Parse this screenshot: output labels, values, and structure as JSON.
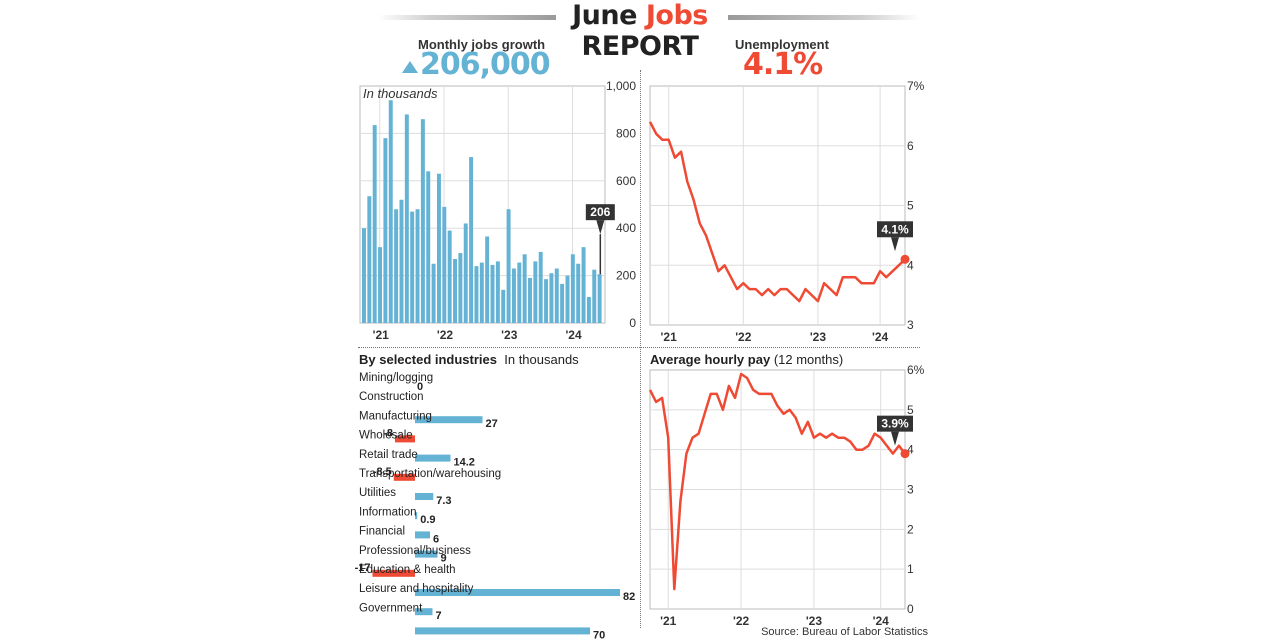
{
  "header": {
    "title_top_a": "June ",
    "title_top_b": "Jobs",
    "title_bottom": "REPORT",
    "jobs_label": "Monthly jobs growth",
    "jobs_value": "206,000",
    "unemployment_label": "Unemployment",
    "unemployment_value": "4.1%"
  },
  "colors": {
    "blue": "#64b2d4",
    "red": "#ef4a33",
    "dark": "#333333"
  },
  "icons": {
    "jobs_trend": "up-arrow-icon"
  },
  "industries_title": {
    "bold": "By selected industries",
    "light": "In thousands"
  },
  "pay_title": {
    "bold": "Average hourly pay",
    "light": "(12 months)"
  },
  "source": "Source: Bureau of Labor Statistics",
  "chart_data": [
    {
      "id": "jobs",
      "type": "bar",
      "subtitle": "In thousands",
      "ylim": [
        0,
        1000
      ],
      "yticks": [
        0,
        200,
        400,
        600,
        800,
        1000
      ],
      "ytick_labels": [
        "0",
        "200",
        "400",
        "600",
        "800",
        "1,000"
      ],
      "xticks": [
        "'21",
        "'22",
        "'23",
        "'24"
      ],
      "x_tick_index": [
        3,
        15,
        27,
        39
      ],
      "grid": true,
      "callout": "206",
      "values": [
        400,
        535,
        835,
        320,
        780,
        940,
        480,
        520,
        880,
        470,
        480,
        860,
        640,
        250,
        630,
        490,
        390,
        270,
        295,
        420,
        700,
        240,
        255,
        365,
        245,
        260,
        140,
        480,
        230,
        255,
        290,
        190,
        260,
        300,
        185,
        210,
        230,
        165,
        200,
        290,
        250,
        320,
        110,
        225,
        206
      ]
    },
    {
      "id": "unemployment",
      "type": "line",
      "ylim": [
        3,
        7
      ],
      "yticks": [
        3,
        4,
        5,
        6,
        7
      ],
      "ytick_labels": [
        "3",
        "4",
        "5",
        "6",
        "7%"
      ],
      "xticks": [
        "'21",
        "'22",
        "'23",
        "'24"
      ],
      "x_tick_index": [
        3,
        15,
        27,
        37
      ],
      "grid": true,
      "callout": "4.1%",
      "values": [
        6.4,
        6.2,
        6.1,
        6.1,
        5.8,
        5.9,
        5.4,
        5.1,
        4.7,
        4.5,
        4.2,
        3.9,
        4.0,
        3.8,
        3.6,
        3.7,
        3.6,
        3.6,
        3.5,
        3.6,
        3.5,
        3.6,
        3.6,
        3.5,
        3.4,
        3.6,
        3.5,
        3.4,
        3.7,
        3.6,
        3.5,
        3.8,
        3.8,
        3.8,
        3.7,
        3.7,
        3.7,
        3.9,
        3.8,
        3.9,
        4.0,
        4.1
      ]
    },
    {
      "id": "industries",
      "type": "bar",
      "orientation": "horizontal",
      "categories": [
        "Mining/logging",
        "Construction",
        "Manufacturing",
        "Wholesale",
        "Retail trade",
        "Transportation/warehousing",
        "Utilities",
        "Information",
        "Financial",
        "Professional/business",
        "Education & health",
        "Leisure and hospitality",
        "Government"
      ],
      "values": [
        0,
        27,
        -8,
        14.2,
        -8.5,
        7.3,
        0.9,
        6,
        9,
        -17,
        82,
        7,
        70
      ],
      "labels": [
        "0",
        "27",
        "-8",
        "14.2",
        "-8.5",
        "7.3",
        "0.9",
        "6",
        "9",
        "-17",
        "82",
        "7",
        "70"
      ]
    },
    {
      "id": "hourly-pay",
      "type": "line",
      "ylim": [
        0,
        6
      ],
      "yticks": [
        0,
        1,
        2,
        3,
        4,
        5,
        6
      ],
      "ytick_labels": [
        "0",
        "1",
        "2",
        "3",
        "4",
        "5",
        "6%"
      ],
      "xticks": [
        "'21",
        "'22",
        "'23",
        "'24"
      ],
      "x_tick_index": [
        3,
        15,
        27,
        38
      ],
      "grid": true,
      "callout": "3.9%",
      "values": [
        5.5,
        5.2,
        5.3,
        4.3,
        0.5,
        2.7,
        3.9,
        4.3,
        4.4,
        4.9,
        5.4,
        5.4,
        5.0,
        5.6,
        5.3,
        5.9,
        5.8,
        5.5,
        5.4,
        5.4,
        5.4,
        5.1,
        4.9,
        5.0,
        4.8,
        4.4,
        4.7,
        4.3,
        4.4,
        4.3,
        4.4,
        4.3,
        4.3,
        4.2,
        4.0,
        4.0,
        4.1,
        4.4,
        4.3,
        4.1,
        3.9,
        4.1,
        3.9
      ]
    }
  ]
}
